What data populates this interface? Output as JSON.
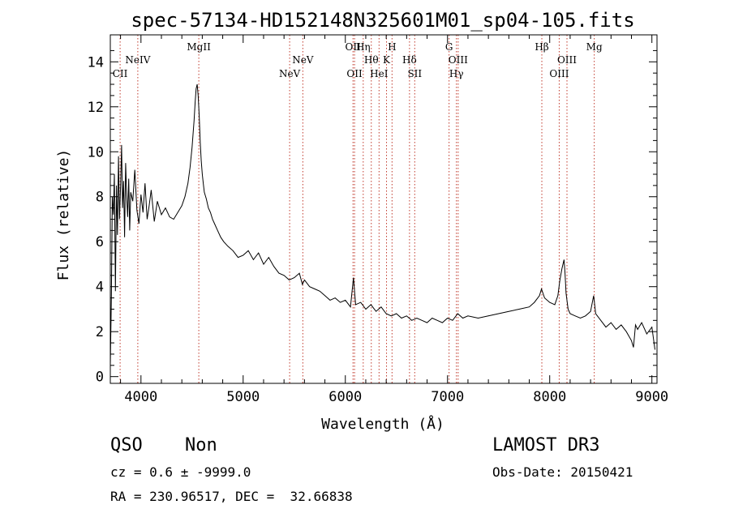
{
  "chart_data": {
    "type": "line",
    "title": "spec-57134-HD152148N325601M01_sp04-105.fits",
    "xlabel": "Wavelength (Å)",
    "ylabel": "Flux (relative)",
    "xlim": [
      3700,
      9050
    ],
    "ylim": [
      -0.3,
      15.2
    ],
    "xticks": [
      4000,
      5000,
      6000,
      7000,
      8000,
      9000
    ],
    "yticks": [
      0,
      2,
      4,
      6,
      8,
      10,
      12,
      14
    ],
    "grid": false,
    "emission_lines": [
      {
        "label": "CII",
        "wavelength": 3796,
        "row": 3
      },
      {
        "label": "NeIV",
        "wavelength": 3969,
        "row": 1
      },
      {
        "label": "MgII",
        "wavelength": 4566,
        "row": 0
      },
      {
        "label": "NeV",
        "wavelength": 5455,
        "row": 3
      },
      {
        "label": "NeV",
        "wavelength": 5584,
        "row": 1
      },
      {
        "label": "OII",
        "wavelength": 6075,
        "row": 0
      },
      {
        "label": "OII",
        "wavelength": 6090,
        "row": 3
      },
      {
        "label": "Hη",
        "wavelength": 6175,
        "row": 0
      },
      {
        "label": "Hθ",
        "wavelength": 6254,
        "row": 2
      },
      {
        "label": "HeI",
        "wavelength": 6330,
        "row": 3
      },
      {
        "label": "K",
        "wavelength": 6403,
        "row": 2
      },
      {
        "label": "H",
        "wavelength": 6457,
        "row": 0
      },
      {
        "label": "Hδ",
        "wavelength": 6628,
        "row": 2
      },
      {
        "label": "SII",
        "wavelength": 6679,
        "row": 3
      },
      {
        "label": "G",
        "wavelength": 7015,
        "row": 0
      },
      {
        "label": "Hγ",
        "wavelength": 7087,
        "row": 3
      },
      {
        "label": "OIII",
        "wavelength": 7104,
        "row": 2
      },
      {
        "label": "Hβ",
        "wavelength": 7923,
        "row": 0
      },
      {
        "label": "OIII",
        "wavelength": 8093,
        "row": 3
      },
      {
        "label": "OIII",
        "wavelength": 8169,
        "row": 2
      },
      {
        "label": "Mg",
        "wavelength": 8436,
        "row": 0
      }
    ],
    "series": [
      {
        "x": [
          3700,
          3710,
          3720,
          3730,
          3740,
          3750,
          3760,
          3770,
          3780,
          3790,
          3800,
          3810,
          3820,
          3830,
          3840,
          3850,
          3860,
          3870,
          3880,
          3890,
          3900,
          3920,
          3940,
          3960,
          3980,
          4000,
          4020,
          4040,
          4060,
          4080,
          4100,
          4130,
          4160,
          4200,
          4240,
          4280,
          4320,
          4360,
          4400,
          4430,
          4460,
          4480,
          4500,
          4520,
          4530,
          4540,
          4550,
          4560,
          4570,
          4580,
          4590,
          4600,
          4610,
          4620,
          4640,
          4660,
          4680,
          4700,
          4720,
          4750,
          4780,
          4810,
          4850,
          4900,
          4950,
          5000,
          5050,
          5100,
          5150,
          5200,
          5250,
          5300,
          5350,
          5400,
          5450,
          5500,
          5550,
          5580,
          5600,
          5650,
          5700,
          5750,
          5800,
          5850,
          5900,
          5950,
          6000,
          6050,
          6080,
          6100,
          6150,
          6200,
          6250,
          6300,
          6350,
          6400,
          6450,
          6500,
          6550,
          6600,
          6650,
          6700,
          6750,
          6800,
          6850,
          6900,
          6950,
          7000,
          7050,
          7100,
          7150,
          7200,
          7300,
          7400,
          7500,
          7600,
          7700,
          7800,
          7850,
          7900,
          7920,
          7950,
          8000,
          8050,
          8080,
          8100,
          8120,
          8140,
          8150,
          8160,
          8180,
          8200,
          8250,
          8300,
          8350,
          8400,
          8430,
          8450,
          8500,
          8550,
          8600,
          8650,
          8700,
          8750,
          8800,
          8820,
          8840,
          8860,
          8900,
          8950,
          9000,
          9030
        ],
        "y": [
          0.5,
          3.5,
          8.0,
          7.2,
          9.0,
          3.8,
          8.5,
          6.3,
          9.8,
          7.0,
          8.4,
          10.3,
          7.5,
          8.7,
          6.2,
          9.5,
          8.0,
          7.1,
          8.8,
          6.5,
          8.2,
          7.8,
          9.2,
          7.4,
          6.8,
          8.1,
          7.3,
          8.6,
          7.0,
          7.6,
          8.3,
          6.9,
          7.8,
          7.2,
          7.5,
          7.1,
          7.0,
          7.3,
          7.6,
          8.0,
          8.6,
          9.3,
          10.2,
          11.4,
          12.2,
          12.8,
          13.0,
          12.5,
          11.6,
          10.4,
          9.6,
          9.0,
          8.6,
          8.2,
          7.9,
          7.5,
          7.3,
          7.0,
          6.8,
          6.5,
          6.2,
          6.0,
          5.8,
          5.6,
          5.3,
          5.4,
          5.6,
          5.2,
          5.5,
          5.0,
          5.3,
          4.9,
          4.6,
          4.5,
          4.3,
          4.4,
          4.6,
          4.1,
          4.3,
          4.0,
          3.9,
          3.8,
          3.6,
          3.4,
          3.5,
          3.3,
          3.4,
          3.1,
          4.4,
          3.2,
          3.3,
          3.0,
          3.2,
          2.9,
          3.1,
          2.8,
          2.7,
          2.8,
          2.6,
          2.7,
          2.5,
          2.6,
          2.5,
          2.4,
          2.6,
          2.5,
          2.4,
          2.6,
          2.5,
          2.8,
          2.6,
          2.7,
          2.6,
          2.7,
          2.8,
          2.9,
          3.0,
          3.1,
          3.3,
          3.6,
          3.9,
          3.5,
          3.3,
          3.2,
          3.6,
          4.3,
          4.8,
          5.2,
          4.6,
          3.7,
          3.0,
          2.8,
          2.7,
          2.6,
          2.7,
          2.9,
          3.6,
          2.8,
          2.5,
          2.2,
          2.4,
          2.1,
          2.3,
          2.0,
          1.6,
          1.3,
          2.3,
          2.1,
          2.4,
          1.9,
          2.2,
          1.2
        ]
      }
    ]
  },
  "footer": {
    "object_class": "QSO",
    "subclass": "Non",
    "survey": "LAMOST DR3",
    "redshift": "cz = 0.6 ± -9999.0",
    "obs_date": "Obs-Date: 20150421",
    "coords": "RA = 230.96517, DEC =  32.66838"
  },
  "colors": {
    "line": "#000000",
    "emission_marker": "#c0392b",
    "axes": "#000000",
    "background": "#ffffff"
  }
}
